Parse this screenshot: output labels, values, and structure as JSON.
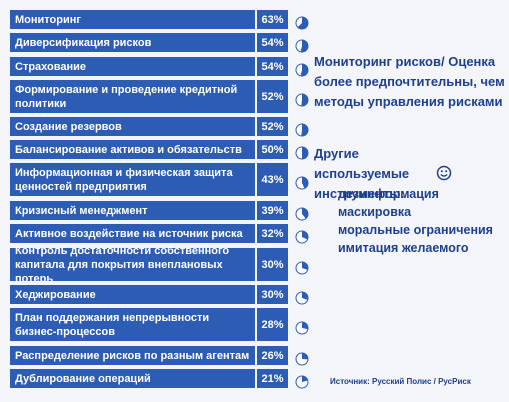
{
  "chart_data": {
    "type": "pie-list",
    "categories": [
      "Мониторинг",
      "Диверсификация рисков",
      "Страхование",
      "Формирование и проведение кредитной политики",
      "Создание резервов",
      "Балансирование активов и обязательств",
      "Информационная и физическая защита ценностей предприятия",
      "Кризисный менеджмент",
      "Активное воздействие на источник риска",
      "Контроль достаточности собственного капитала для покрытия внеплановых потерь",
      "Хеджирование",
      "План поддержания непрерывности бизнес-процессов",
      "Распределение рисков по разным агентам",
      "Дублирование операций"
    ],
    "values": [
      63,
      54,
      54,
      52,
      52,
      50,
      43,
      39,
      32,
      30,
      30,
      28,
      26,
      21
    ],
    "value_labels": [
      "63%",
      "54%",
      "54%",
      "52%",
      "52%",
      "50%",
      "43%",
      "39%",
      "32%",
      "30%",
      "30%",
      "28%",
      "26%",
      "21%"
    ],
    "color": "#2d5cb5"
  },
  "notes": {
    "heading": "Мониторинг рисков/ Оценка более предпочтительны, чем методы управления рисками",
    "subheading": "Другие используемые инструменты:",
    "items": [
      "дезинформация",
      "маскировка",
      "моральные ограничения",
      "имитация желаемого"
    ],
    "source": "Источник: Русский Полис / РусРиск"
  }
}
